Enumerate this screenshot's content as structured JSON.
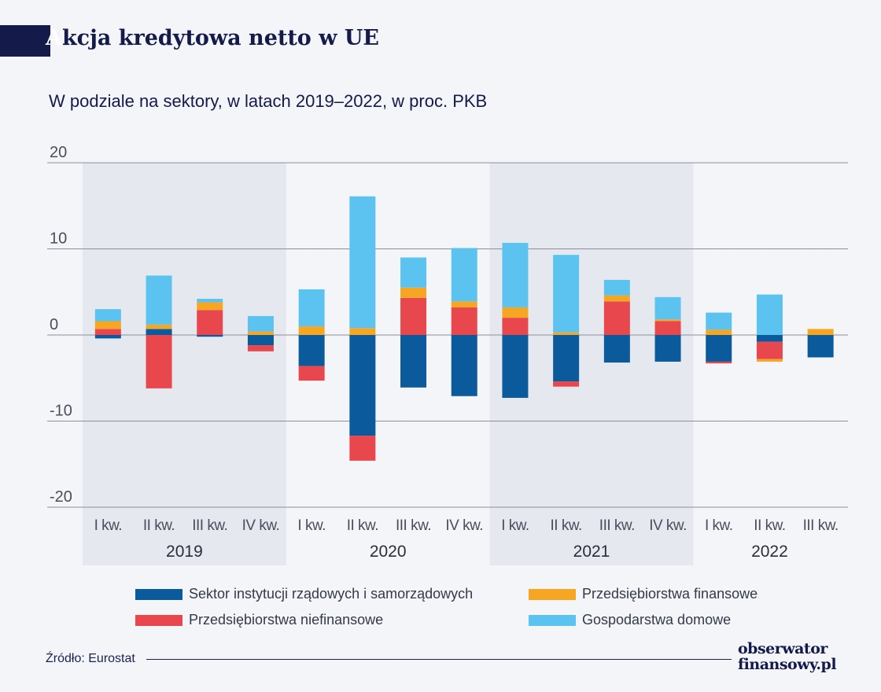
{
  "header": {
    "title_first": "A",
    "title_rest": "kcja kredytowa netto w UE",
    "subtitle": "W podziale na sektory, w latach 2019–2022, w proc. PKB"
  },
  "chart_data": {
    "type": "bar",
    "stacked": true,
    "categories": [
      "I kw.",
      "II kw.",
      "III kw.",
      "IV kw.",
      "I kw.",
      "II kw.",
      "III kw.",
      "IV kw.",
      "I kw.",
      "II kw.",
      "III kw.",
      "IV kw.",
      "I kw.",
      "II kw.",
      "III kw."
    ],
    "year_groups": [
      {
        "label": "2019",
        "start": 0,
        "end": 3,
        "shaded": true
      },
      {
        "label": "2020",
        "start": 4,
        "end": 7,
        "shaded": false
      },
      {
        "label": "2021",
        "start": 8,
        "end": 11,
        "shaded": true
      },
      {
        "label": "2022",
        "start": 12,
        "end": 14,
        "shaded": false
      }
    ],
    "series": [
      {
        "name": "Sektor instytucji rządowych i samorządowych",
        "color": "#0a5a9c",
        "values": [
          -0.4,
          0.7,
          -0.2,
          -1.2,
          -3.6,
          -11.7,
          -6.1,
          -7.1,
          -7.3,
          -5.4,
          -3.2,
          -3.1,
          -3.1,
          -0.8,
          -2.6
        ]
      },
      {
        "name": "Przedsiębiorstwa niefinansowe",
        "color": "#e8474e",
        "values": [
          0.7,
          -6.2,
          2.9,
          -0.7,
          -1.7,
          -2.9,
          4.3,
          3.2,
          2.0,
          -0.6,
          3.9,
          1.6,
          -0.2,
          -2.0,
          0.0
        ]
      },
      {
        "name": "Przedsiębiorstwa finansowe",
        "color": "#f6a623",
        "values": [
          0.9,
          0.5,
          0.9,
          0.4,
          1.0,
          0.8,
          1.2,
          0.7,
          1.2,
          0.3,
          0.7,
          0.2,
          0.6,
          -0.3,
          0.7
        ]
      },
      {
        "name": "Gospodarstwa domowe",
        "color": "#5cc3f0",
        "values": [
          1.4,
          5.7,
          0.4,
          1.8,
          4.3,
          15.3,
          3.5,
          6.2,
          7.5,
          9.0,
          1.8,
          2.6,
          2.0,
          4.7,
          0.0
        ]
      }
    ],
    "y_ticks": [
      "20",
      "10",
      "0",
      "-10",
      "-20"
    ],
    "ylim": [
      -20,
      20
    ],
    "grid": true,
    "legend_position": "bottom"
  },
  "footer": {
    "source": "Źródło: Eurostat",
    "logo_line1": "obserwator",
    "logo_line2": "finansowy.pl"
  }
}
